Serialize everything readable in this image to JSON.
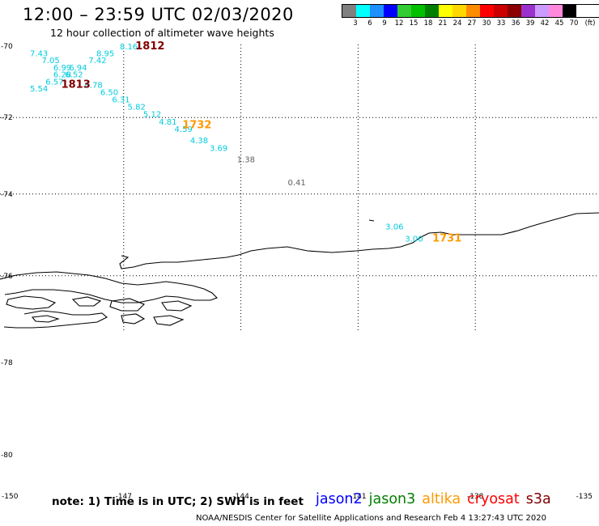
{
  "header": {
    "title": "12:00 – 23:59 UTC 02/03/2020",
    "subtitle": "12 hour collection of altimeter wave heights"
  },
  "legend": {
    "unit": "(ft)",
    "bins": [
      {
        "label": "3",
        "color": "#808080"
      },
      {
        "label": "6",
        "color": "#00ffff"
      },
      {
        "label": "9",
        "color": "#1e90ff"
      },
      {
        "label": "12",
        "color": "#0000ff"
      },
      {
        "label": "15",
        "color": "#32cd32"
      },
      {
        "label": "18",
        "color": "#00c000"
      },
      {
        "label": "21",
        "color": "#008000"
      },
      {
        "label": "24",
        "color": "#ffff00"
      },
      {
        "label": "27",
        "color": "#ffd700"
      },
      {
        "label": "30",
        "color": "#ff8c00"
      },
      {
        "label": "33",
        "color": "#ff0000"
      },
      {
        "label": "36",
        "color": "#cc0000"
      },
      {
        "label": "39",
        "color": "#8b0000"
      },
      {
        "label": "42",
        "color": "#9932cc"
      },
      {
        "label": "45",
        "color": "#cc99ff"
      },
      {
        "label": "70",
        "color": "#ff88dd"
      },
      {
        "label": "",
        "color": "#000000"
      }
    ]
  },
  "axes": {
    "lat_labels": [
      "-70",
      "-72",
      "-74",
      "-76",
      "-78",
      "-80"
    ],
    "lon_labels": [
      "-150",
      "-147",
      "-144",
      "-141",
      "-138",
      "-135"
    ]
  },
  "colors": {
    "cyan": "#00ccdd",
    "gray": "#606060",
    "dark_red": "#800000",
    "orange": "#ff9900"
  },
  "observations": [
    {
      "text": "8.16",
      "lon": -147.1,
      "lat": -70.0,
      "color": "cyan"
    },
    {
      "text": "7.43",
      "lon": -149.4,
      "lat": -70.2,
      "color": "cyan"
    },
    {
      "text": "8.95",
      "lon": -147.7,
      "lat": -70.2,
      "color": "cyan"
    },
    {
      "text": "7.05",
      "lon": -149.1,
      "lat": -70.4,
      "color": "cyan"
    },
    {
      "text": "7.42",
      "lon": -147.9,
      "lat": -70.4,
      "color": "cyan"
    },
    {
      "text": "6.99",
      "lon": -148.8,
      "lat": -70.6,
      "color": "cyan"
    },
    {
      "text": "6.94",
      "lon": -148.4,
      "lat": -70.6,
      "color": "cyan"
    },
    {
      "text": "6.28",
      "lon": -148.8,
      "lat": -70.8,
      "color": "cyan"
    },
    {
      "text": "6.52",
      "lon": -148.5,
      "lat": -70.8,
      "color": "cyan"
    },
    {
      "text": "6.57",
      "lon": -149.0,
      "lat": -71.0,
      "color": "cyan"
    },
    {
      "text": "5.54",
      "lon": -149.4,
      "lat": -71.2,
      "color": "cyan"
    },
    {
      "text": "6.78",
      "lon": -148.0,
      "lat": -71.1,
      "color": "cyan"
    },
    {
      "text": "6.50",
      "lon": -147.6,
      "lat": -71.3,
      "color": "cyan"
    },
    {
      "text": "6.31",
      "lon": -147.3,
      "lat": -71.5,
      "color": "cyan"
    },
    {
      "text": "5.82",
      "lon": -146.9,
      "lat": -71.7,
      "color": "cyan"
    },
    {
      "text": "5.12",
      "lon": -146.5,
      "lat": -71.9,
      "color": "cyan"
    },
    {
      "text": "4.81",
      "lon": -146.1,
      "lat": -72.1,
      "color": "cyan"
    },
    {
      "text": "4.59",
      "lon": -145.7,
      "lat": -72.3,
      "color": "cyan"
    },
    {
      "text": "4.38",
      "lon": -145.3,
      "lat": -72.6,
      "color": "cyan"
    },
    {
      "text": "3.69",
      "lon": -144.8,
      "lat": -72.8,
      "color": "cyan"
    },
    {
      "text": "1.38",
      "lon": -144.1,
      "lat": -73.1,
      "color": "gray"
    },
    {
      "text": "0.41",
      "lon": -142.8,
      "lat": -73.7,
      "color": "gray"
    },
    {
      "text": "3.06",
      "lon": -140.3,
      "lat": -74.8,
      "color": "cyan"
    },
    {
      "text": "3.00",
      "lon": -139.8,
      "lat": -75.1,
      "color": "cyan"
    }
  ],
  "time_labels": [
    {
      "text": "1812",
      "lon": -146.7,
      "lat": -70.0,
      "color": "dark_red"
    },
    {
      "text": "1813",
      "lon": -148.6,
      "lat": -71.1,
      "color": "dark_red"
    },
    {
      "text": "1732",
      "lon": -145.5,
      "lat": -72.2,
      "color": "orange"
    },
    {
      "text": "1731",
      "lon": -139.1,
      "lat": -75.1,
      "color": "orange"
    }
  ],
  "footer": {
    "note": "note:  1) Time is in UTC;  2) SWH is in feet",
    "satellites": [
      {
        "name": "jason2",
        "color": "#0000ff"
      },
      {
        "name": "jason3",
        "color": "#008000"
      },
      {
        "name": "altika",
        "color": "#ff9900"
      },
      {
        "name": "cryosat",
        "color": "#ff0000"
      },
      {
        "name": "s3a",
        "color": "#800000"
      }
    ],
    "credit": "NOAA/NESDIS Center for Satellite Applications and Research    Feb  4 13:27:43 UTC 2020"
  }
}
